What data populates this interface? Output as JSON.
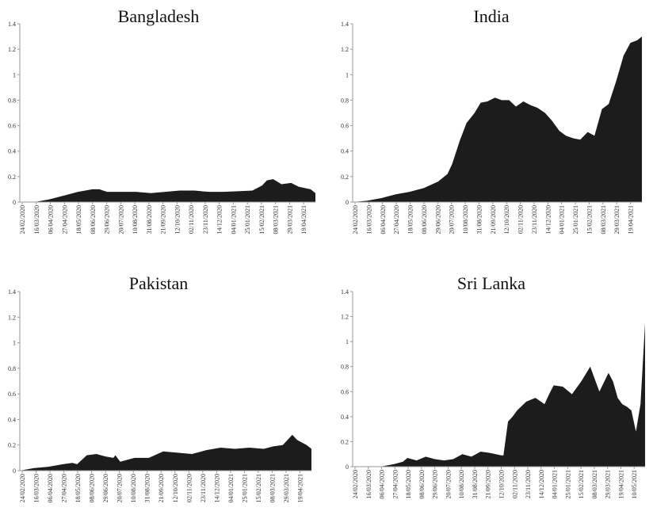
{
  "chart_data": [
    {
      "type": "area",
      "title": "Bangladesh",
      "ylim": [
        0,
        1.4
      ],
      "yticks": [
        "0",
        "0.2",
        "0.4",
        "0.6",
        "0.8",
        "1",
        "1.2",
        "1.4"
      ],
      "categories": [
        "24/02/2020",
        "16/03/2020",
        "06/04/2020",
        "27/04/2020",
        "18/05/2020",
        "08/06/2020",
        "29/06/2020",
        "20/07/2020",
        "10/08/2020",
        "31/08/2020",
        "21/09/2020",
        "12/10/2020",
        "02/11/2020",
        "23/11/2020",
        "14/12/2020",
        "04/01/2021",
        "25/01/2021",
        "15/02/2021",
        "08/03/2021",
        "29/03/2021",
        "19/04/2021"
      ],
      "x": [
        0,
        21,
        42,
        63,
        84,
        105,
        115,
        126,
        147,
        168,
        189,
        210,
        231,
        252,
        273,
        294,
        315,
        336,
        350,
        357,
        366,
        378,
        392,
        403,
        420,
        427
      ],
      "values": [
        0,
        0,
        0.02,
        0.05,
        0.08,
        0.1,
        0.1,
        0.08,
        0.08,
        0.08,
        0.07,
        0.08,
        0.09,
        0.09,
        0.08,
        0.08,
        0.085,
        0.09,
        0.13,
        0.17,
        0.18,
        0.14,
        0.15,
        0.12,
        0.1,
        0.07
      ]
    },
    {
      "type": "area",
      "title": "India",
      "ylim": [
        0,
        1.4
      ],
      "yticks": [
        "0",
        "0.2",
        "0.4",
        "0.6",
        "0.8",
        "1",
        "1.2",
        "1.4"
      ],
      "categories": [
        "24/02/2020",
        "16/03/2020",
        "06/04/2020",
        "27/04/2020",
        "18/05/2020",
        "08/06/2020",
        "29/06/2020",
        "20/07/2020",
        "10/08/2020",
        "31/08/2020",
        "21/09/2020",
        "12/10/2020",
        "02/11/2020",
        "23/11/2020",
        "14/12/2020",
        "04/01/2021",
        "25/01/2021",
        "15/02/2021",
        "08/03/2021",
        "29/03/2021",
        "19/04/2021"
      ],
      "x": [
        0,
        21,
        42,
        63,
        84,
        105,
        126,
        140,
        147,
        158,
        168,
        180,
        189,
        199,
        210,
        220,
        231,
        241,
        252,
        263,
        273,
        284,
        294,
        305,
        315,
        326,
        336,
        347,
        357,
        368,
        378,
        389,
        400,
        410,
        420,
        427
      ],
      "values": [
        0,
        0.01,
        0.03,
        0.06,
        0.08,
        0.11,
        0.16,
        0.22,
        0.3,
        0.48,
        0.62,
        0.7,
        0.78,
        0.79,
        0.82,
        0.8,
        0.8,
        0.75,
        0.79,
        0.76,
        0.74,
        0.7,
        0.64,
        0.56,
        0.52,
        0.5,
        0.49,
        0.55,
        0.52,
        0.73,
        0.77,
        0.95,
        1.15,
        1.25,
        1.27,
        1.3
      ]
    },
    {
      "type": "area",
      "title": "Pakistan",
      "ylim": [
        0,
        1.4
      ],
      "yticks": [
        "0",
        "0.2",
        "0.4",
        "0.6",
        "0.8",
        "1",
        "1.2",
        "1.4"
      ],
      "categories": [
        "24/02/2020",
        "16/03/2020",
        "06/04/2020",
        "27/04/2020",
        "18/05/2020",
        "08/06/2020",
        "29/06/2020",
        "20/07/2020",
        "10/08/2020",
        "31/08/2020",
        "21/09/2020",
        "12/10/2020",
        "02/11/2020",
        "23/11/2020",
        "14/12/2020",
        "04/01/2021",
        "25/01/2021",
        "15/02/2021",
        "08/03/2021",
        "29/03/2021",
        "19/04/2021"
      ],
      "x": [
        0,
        21,
        42,
        63,
        77,
        84,
        98,
        112,
        126,
        137,
        140,
        147,
        168,
        189,
        210,
        231,
        252,
        273,
        294,
        315,
        336,
        357,
        364,
        371,
        385,
        399,
        406,
        413,
        420,
        427
      ],
      "values": [
        0,
        0.02,
        0.03,
        0.05,
        0.06,
        0.05,
        0.12,
        0.13,
        0.11,
        0.1,
        0.12,
        0.07,
        0.1,
        0.1,
        0.15,
        0.14,
        0.13,
        0.16,
        0.18,
        0.17,
        0.18,
        0.17,
        0.18,
        0.19,
        0.2,
        0.28,
        0.24,
        0.22,
        0.2,
        0.17
      ]
    },
    {
      "type": "area",
      "title": "Sri Lanka",
      "ylim": [
        0,
        1.4
      ],
      "yticks": [
        "0",
        "0.2",
        "0.4",
        "0.6",
        "0.8",
        "1",
        "1.2",
        "1.4"
      ],
      "categories": [
        "24/02/2020",
        "16/03/2020",
        "06/04/2020",
        "27/04/2020",
        "18/05/2020",
        "08/06/2020",
        "29/06/2020",
        "20/07/2020",
        "10/08/2020",
        "31/08/2020",
        "21/09/2020",
        "12/10/2020",
        "02/11/2020",
        "23/11/2020",
        "14/12/2020",
        "04/01/2021",
        "25/01/2021",
        "15/02/2021",
        "08/03/2021",
        "29/03/2021",
        "19/04/2021",
        "10/05/2021"
      ],
      "x": [
        0,
        21,
        42,
        63,
        77,
        84,
        98,
        112,
        126,
        140,
        154,
        168,
        182,
        196,
        210,
        228,
        231,
        238,
        245,
        252,
        266,
        280,
        294,
        301,
        308,
        322,
        336,
        350,
        364,
        378,
        392,
        399,
        406,
        413,
        420,
        427,
        434,
        441,
        448
      ],
      "values": [
        0,
        0,
        0,
        0.02,
        0.04,
        0.07,
        0.05,
        0.08,
        0.06,
        0.05,
        0.06,
        0.1,
        0.08,
        0.12,
        0.11,
        0.09,
        0.09,
        0.36,
        0.4,
        0.45,
        0.52,
        0.55,
        0.5,
        0.58,
        0.65,
        0.64,
        0.58,
        0.68,
        0.8,
        0.6,
        0.75,
        0.68,
        0.55,
        0.5,
        0.48,
        0.45,
        0.28,
        0.5,
        1.15
      ]
    }
  ]
}
